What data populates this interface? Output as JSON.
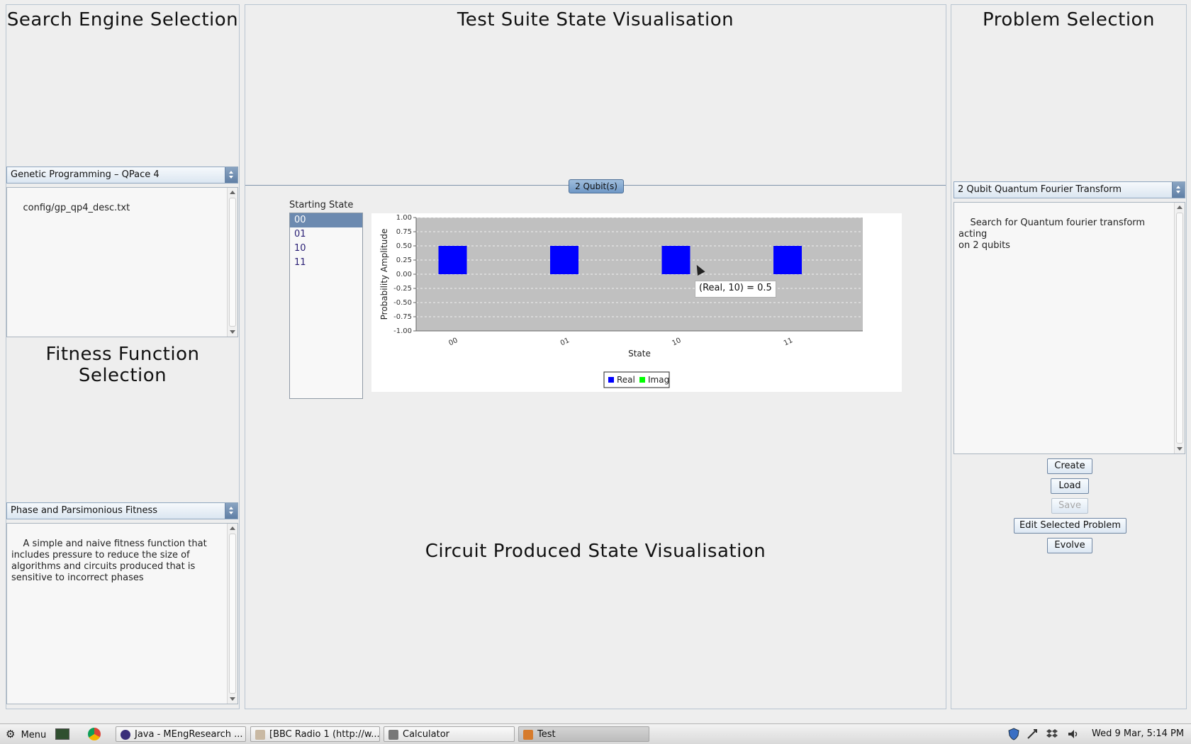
{
  "left": {
    "search_heading": "Search Engine Selection",
    "search_engine_value": "Genetic Programming – QPace 4",
    "search_description": "config/gp_qp4_desc.txt",
    "fitness_heading": "Fitness Function Selection",
    "fitness_value": "Phase and Parsimonious Fitness",
    "fitness_description": "A simple and naive fitness function that\nincludes pressure to reduce the size of\nalgorithms and circuits produced that is\nsensitive to incorrect phases"
  },
  "center": {
    "test_heading": "Test Suite State Visualisation",
    "qubit_tab": "2 Qubit(s)",
    "starting_state_label": "Starting State",
    "states": [
      "00",
      "01",
      "10",
      "11"
    ],
    "selected_state": "00",
    "circuit_heading": "Circuit Produced State Visualisation",
    "tooltip": "(Real, 10) = 0.5"
  },
  "chart_data": {
    "type": "bar",
    "categories": [
      "00",
      "01",
      "10",
      "11"
    ],
    "series": [
      {
        "name": "Real",
        "values": [
          0.5,
          0.5,
          0.5,
          0.5
        ],
        "color": "#0000ff"
      },
      {
        "name": "Imag",
        "values": [
          0,
          0,
          0,
          0
        ],
        "color": "#00ff00"
      }
    ],
    "xlabel": "State",
    "ylabel": "Probability Amplitude",
    "ylim": [
      -1.0,
      1.0
    ],
    "yticks": [
      "1.00",
      "0.75",
      "0.50",
      "0.25",
      "0.00",
      "-0.25",
      "-0.50",
      "-0.75",
      "-1.00"
    ],
    "grid": true,
    "legend": "bottom-center",
    "plot_background": "#c0c0c0"
  },
  "right": {
    "problem_heading": "Problem Selection",
    "problem_value": "2 Qubit Quantum Fourier Transform",
    "problem_description": "Search for Quantum fourier transform acting\non 2 qubits",
    "buttons": {
      "create": "Create",
      "load": "Load",
      "save": "Save",
      "edit": "Edit Selected Problem",
      "evolve": "Evolve"
    }
  },
  "taskbar": {
    "menu_label": "Menu",
    "tasks": [
      {
        "label": "Java - MEngResearch ...",
        "icon": "eclipse-icon"
      },
      {
        "label": "[BBC Radio 1 (http://w...",
        "icon": "radio-icon"
      },
      {
        "label": "Calculator",
        "icon": "calculator-icon"
      },
      {
        "label": "Test",
        "icon": "java-icon"
      }
    ],
    "clock": "Wed  9 Mar,  5:14 PM"
  },
  "colors": {
    "accent": "#6c8ab0",
    "bar_real": "#0000ff",
    "bar_imag": "#00ff00"
  }
}
